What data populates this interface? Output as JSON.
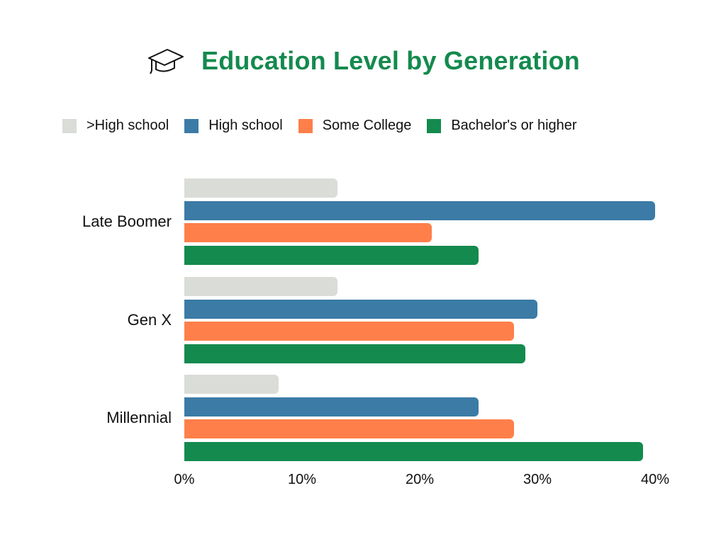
{
  "header": {
    "title": "Education Level by Generation",
    "icon": "graduation-cap-icon"
  },
  "legend": {
    "items": [
      {
        "label": ">High school",
        "color": "#dadcd8"
      },
      {
        "label": "High school",
        "color": "#3b7ba6"
      },
      {
        "label": "Some College",
        "color": "#ff7f4a"
      },
      {
        "label": "Bachelor's or higher",
        "color": "#148a4e"
      }
    ]
  },
  "axis": {
    "ticks": [
      "0%",
      "10%",
      "20%",
      "30%",
      "40%"
    ]
  },
  "chart_data": {
    "type": "bar",
    "orientation": "horizontal",
    "title": "Education Level by Generation",
    "xlabel": "",
    "ylabel": "",
    "categories": [
      "Late Boomer",
      "Gen X",
      "Millennial"
    ],
    "series": [
      {
        "name": ">High school",
        "color": "#dadcd8",
        "values": [
          13,
          13,
          8
        ]
      },
      {
        "name": "High school",
        "color": "#3b7ba6",
        "values": [
          40,
          30,
          25
        ]
      },
      {
        "name": "Some College",
        "color": "#ff7f4a",
        "values": [
          21,
          28,
          28
        ]
      },
      {
        "name": "Bachelor's or higher",
        "color": "#148a4e",
        "values": [
          25,
          29,
          39
        ]
      }
    ],
    "xlim": [
      0,
      40
    ],
    "x_ticks": [
      "0%",
      "10%",
      "20%",
      "30%",
      "40%"
    ],
    "grid": false,
    "legend_position": "top"
  }
}
